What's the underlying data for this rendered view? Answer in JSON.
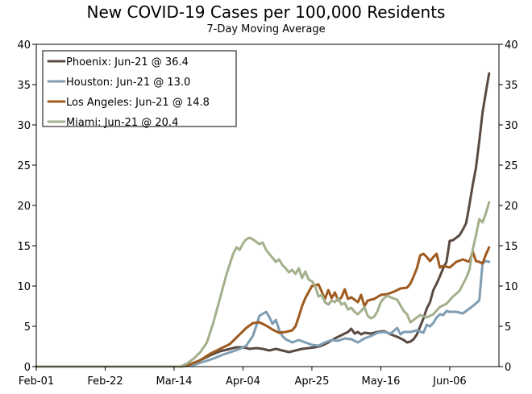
{
  "chart_data": {
    "type": "line",
    "title": "New COVID-19 Cases per 100,000 Residents",
    "subtitle": "7-Day Moving Average",
    "xlabel": "",
    "ylabel": "",
    "ylim": [
      0,
      40
    ],
    "y_ticks": [
      "0",
      "5",
      "10",
      "15",
      "20",
      "25",
      "30",
      "35",
      "40"
    ],
    "x_range_days": [
      0,
      141
    ],
    "x_ticks": [
      {
        "day": 0,
        "label": "Feb-01"
      },
      {
        "day": 21,
        "label": "Feb-22"
      },
      {
        "day": 42,
        "label": "Mar-14"
      },
      {
        "day": 63,
        "label": "Apr-04"
      },
      {
        "day": 84,
        "label": "Apr-25"
      },
      {
        "day": 105,
        "label": "May-16"
      },
      {
        "day": 126,
        "label": "Jun-06"
      }
    ],
    "legend_position": "top-left",
    "series": [
      {
        "name": "Phoenix",
        "label": "Phoenix: Jun-21 @ 36.4",
        "color": "#5a4a42",
        "points": [
          [
            0,
            0
          ],
          [
            44,
            0
          ],
          [
            47,
            0.3
          ],
          [
            50,
            0.8
          ],
          [
            53,
            1.4
          ],
          [
            56,
            1.9
          ],
          [
            59,
            2.2
          ],
          [
            61,
            2.4
          ],
          [
            63,
            2.4
          ],
          [
            65,
            2.2
          ],
          [
            67,
            2.3
          ],
          [
            69,
            2.2
          ],
          [
            71,
            2.0
          ],
          [
            73,
            2.2
          ],
          [
            75,
            2.0
          ],
          [
            77,
            1.8
          ],
          [
            79,
            2.0
          ],
          [
            81,
            2.2
          ],
          [
            83,
            2.3
          ],
          [
            85,
            2.4
          ],
          [
            87,
            2.6
          ],
          [
            89,
            3.0
          ],
          [
            91,
            3.5
          ],
          [
            93,
            3.9
          ],
          [
            95,
            4.3
          ],
          [
            96,
            4.7
          ],
          [
            97,
            4.1
          ],
          [
            98,
            4.3
          ],
          [
            99,
            4.0
          ],
          [
            100,
            4.2
          ],
          [
            102,
            4.1
          ],
          [
            104,
            4.3
          ],
          [
            106,
            4.4
          ],
          [
            108,
            4.0
          ],
          [
            110,
            3.7
          ],
          [
            112,
            3.3
          ],
          [
            113,
            3.0
          ],
          [
            114,
            3.1
          ],
          [
            115,
            3.4
          ],
          [
            116,
            4.0
          ],
          [
            117,
            5.0
          ],
          [
            118,
            6.0
          ],
          [
            119,
            7.2
          ],
          [
            120,
            8.0
          ],
          [
            121,
            9.5
          ],
          [
            122,
            10.3
          ],
          [
            123,
            11.2
          ],
          [
            124,
            12.2
          ],
          [
            125,
            13.0
          ],
          [
            126,
            15.6
          ],
          [
            127,
            15.7
          ],
          [
            128,
            16.0
          ],
          [
            129,
            16.3
          ],
          [
            130,
            17.0
          ],
          [
            131,
            17.8
          ],
          [
            132,
            20.1
          ],
          [
            133,
            22.5
          ],
          [
            134,
            24.7
          ],
          [
            135,
            28.0
          ],
          [
            136,
            31.5
          ],
          [
            137,
            34.0
          ],
          [
            138,
            36.4
          ]
        ]
      },
      {
        "name": "Houston",
        "label": "Houston: Jun-21 @ 13.0",
        "color": "#7f9db3",
        "points": [
          [
            0,
            0
          ],
          [
            44,
            0
          ],
          [
            48,
            0.2
          ],
          [
            51,
            0.6
          ],
          [
            54,
            1.0
          ],
          [
            57,
            1.5
          ],
          [
            60,
            1.9
          ],
          [
            62,
            2.2
          ],
          [
            64,
            2.6
          ],
          [
            66,
            3.8
          ],
          [
            67,
            5.0
          ],
          [
            68,
            6.3
          ],
          [
            70,
            6.8
          ],
          [
            71,
            6.2
          ],
          [
            72,
            5.3
          ],
          [
            73,
            5.8
          ],
          [
            74,
            4.6
          ],
          [
            75,
            3.8
          ],
          [
            76,
            3.4
          ],
          [
            78,
            3.0
          ],
          [
            80,
            3.3
          ],
          [
            82,
            3.0
          ],
          [
            84,
            2.7
          ],
          [
            86,
            2.6
          ],
          [
            88,
            3.0
          ],
          [
            90,
            3.3
          ],
          [
            92,
            3.2
          ],
          [
            94,
            3.5
          ],
          [
            96,
            3.4
          ],
          [
            98,
            3.0
          ],
          [
            100,
            3.5
          ],
          [
            102,
            3.8
          ],
          [
            104,
            4.2
          ],
          [
            106,
            4.3
          ],
          [
            108,
            4.1
          ],
          [
            110,
            4.8
          ],
          [
            111,
            4.0
          ],
          [
            112,
            4.3
          ],
          [
            114,
            4.3
          ],
          [
            116,
            4.5
          ],
          [
            118,
            4.2
          ],
          [
            119,
            5.2
          ],
          [
            120,
            5.0
          ],
          [
            121,
            5.4
          ],
          [
            122,
            6.1
          ],
          [
            123,
            6.5
          ],
          [
            124,
            6.4
          ],
          [
            125,
            6.9
          ],
          [
            126,
            6.8
          ],
          [
            128,
            6.8
          ],
          [
            130,
            6.6
          ],
          [
            131,
            6.9
          ],
          [
            133,
            7.5
          ],
          [
            135,
            8.2
          ],
          [
            136,
            12.8
          ],
          [
            137,
            13.1
          ],
          [
            138,
            13.0
          ]
        ]
      },
      {
        "name": "Los Angeles",
        "label": "Los Angeles: Jun-21 @ 14.8",
        "color": "#9e5a1e",
        "points": [
          [
            0,
            0
          ],
          [
            44,
            0
          ],
          [
            47,
            0.3
          ],
          [
            50,
            0.8
          ],
          [
            53,
            1.6
          ],
          [
            56,
            2.2
          ],
          [
            59,
            2.8
          ],
          [
            61,
            3.6
          ],
          [
            62,
            4.0
          ],
          [
            64,
            4.8
          ],
          [
            66,
            5.4
          ],
          [
            68,
            5.5
          ],
          [
            70,
            5.1
          ],
          [
            72,
            4.6
          ],
          [
            74,
            4.2
          ],
          [
            76,
            4.3
          ],
          [
            78,
            4.5
          ],
          [
            79,
            5.0
          ],
          [
            80,
            6.2
          ],
          [
            81,
            7.5
          ],
          [
            82,
            8.5
          ],
          [
            84,
            10.0
          ],
          [
            86,
            10.2
          ],
          [
            88,
            8.4
          ],
          [
            89,
            9.5
          ],
          [
            90,
            8.5
          ],
          [
            91,
            9.2
          ],
          [
            92,
            8.2
          ],
          [
            93,
            8.6
          ],
          [
            94,
            9.6
          ],
          [
            95,
            8.4
          ],
          [
            96,
            8.6
          ],
          [
            98,
            8.0
          ],
          [
            99,
            8.9
          ],
          [
            100,
            7.5
          ],
          [
            101,
            8.2
          ],
          [
            103,
            8.4
          ],
          [
            105,
            8.9
          ],
          [
            107,
            9.0
          ],
          [
            109,
            9.3
          ],
          [
            111,
            9.7
          ],
          [
            113,
            9.8
          ],
          [
            114,
            10.3
          ],
          [
            115,
            11.2
          ],
          [
            116,
            12.2
          ],
          [
            117,
            13.8
          ],
          [
            118,
            14.0
          ],
          [
            119,
            13.6
          ],
          [
            120,
            13.1
          ],
          [
            121,
            13.6
          ],
          [
            122,
            14.0
          ],
          [
            123,
            12.3
          ],
          [
            124,
            12.5
          ],
          [
            126,
            12.3
          ],
          [
            128,
            13.0
          ],
          [
            130,
            13.3
          ],
          [
            132,
            13.0
          ],
          [
            133,
            14.3
          ],
          [
            134,
            13.1
          ],
          [
            135,
            13.0
          ],
          [
            136,
            12.8
          ],
          [
            137,
            13.9
          ],
          [
            138,
            14.8
          ]
        ]
      },
      {
        "name": "Miami",
        "label": "Miami: Jun-21 @ 20.4",
        "color": "#a3b08c",
        "points": [
          [
            0,
            0
          ],
          [
            44,
            0
          ],
          [
            46,
            0.4
          ],
          [
            48,
            1.0
          ],
          [
            50,
            1.8
          ],
          [
            52,
            3.0
          ],
          [
            54,
            5.5
          ],
          [
            56,
            8.5
          ],
          [
            58,
            11.5
          ],
          [
            60,
            14.0
          ],
          [
            61,
            14.8
          ],
          [
            62,
            14.5
          ],
          [
            63,
            15.3
          ],
          [
            64,
            15.8
          ],
          [
            65,
            16.0
          ],
          [
            66,
            15.8
          ],
          [
            67,
            15.5
          ],
          [
            68,
            15.2
          ],
          [
            69,
            15.4
          ],
          [
            70,
            14.5
          ],
          [
            71,
            14.0
          ],
          [
            72,
            13.5
          ],
          [
            73,
            13.0
          ],
          [
            74,
            13.3
          ],
          [
            75,
            12.6
          ],
          [
            76,
            12.2
          ],
          [
            77,
            11.7
          ],
          [
            78,
            12.0
          ],
          [
            79,
            11.5
          ],
          [
            80,
            12.2
          ],
          [
            81,
            11.0
          ],
          [
            82,
            11.8
          ],
          [
            83,
            10.8
          ],
          [
            84,
            10.6
          ],
          [
            85,
            10.0
          ],
          [
            86,
            8.7
          ],
          [
            87,
            8.9
          ],
          [
            88,
            8.0
          ],
          [
            89,
            7.7
          ],
          [
            90,
            8.2
          ],
          [
            91,
            8.0
          ],
          [
            92,
            8.5
          ],
          [
            93,
            7.7
          ],
          [
            94,
            7.9
          ],
          [
            95,
            7.1
          ],
          [
            96,
            7.3
          ],
          [
            97,
            6.8
          ],
          [
            98,
            6.5
          ],
          [
            99,
            6.9
          ],
          [
            100,
            7.4
          ],
          [
            101,
            6.3
          ],
          [
            102,
            6.0
          ],
          [
            103,
            6.2
          ],
          [
            104,
            6.9
          ],
          [
            105,
            8.0
          ],
          [
            106,
            8.5
          ],
          [
            107,
            8.8
          ],
          [
            108,
            8.6
          ],
          [
            110,
            8.3
          ],
          [
            112,
            6.9
          ],
          [
            113,
            6.5
          ],
          [
            114,
            5.5
          ],
          [
            115,
            5.8
          ],
          [
            117,
            6.4
          ],
          [
            119,
            6.1
          ],
          [
            121,
            6.5
          ],
          [
            123,
            7.4
          ],
          [
            125,
            7.8
          ],
          [
            127,
            8.7
          ],
          [
            129,
            9.4
          ],
          [
            131,
            11.0
          ],
          [
            132,
            12.0
          ],
          [
            133,
            14.5
          ],
          [
            134,
            16.3
          ],
          [
            135,
            18.3
          ],
          [
            136,
            17.9
          ],
          [
            137,
            19.0
          ],
          [
            138,
            20.4
          ]
        ]
      }
    ]
  }
}
